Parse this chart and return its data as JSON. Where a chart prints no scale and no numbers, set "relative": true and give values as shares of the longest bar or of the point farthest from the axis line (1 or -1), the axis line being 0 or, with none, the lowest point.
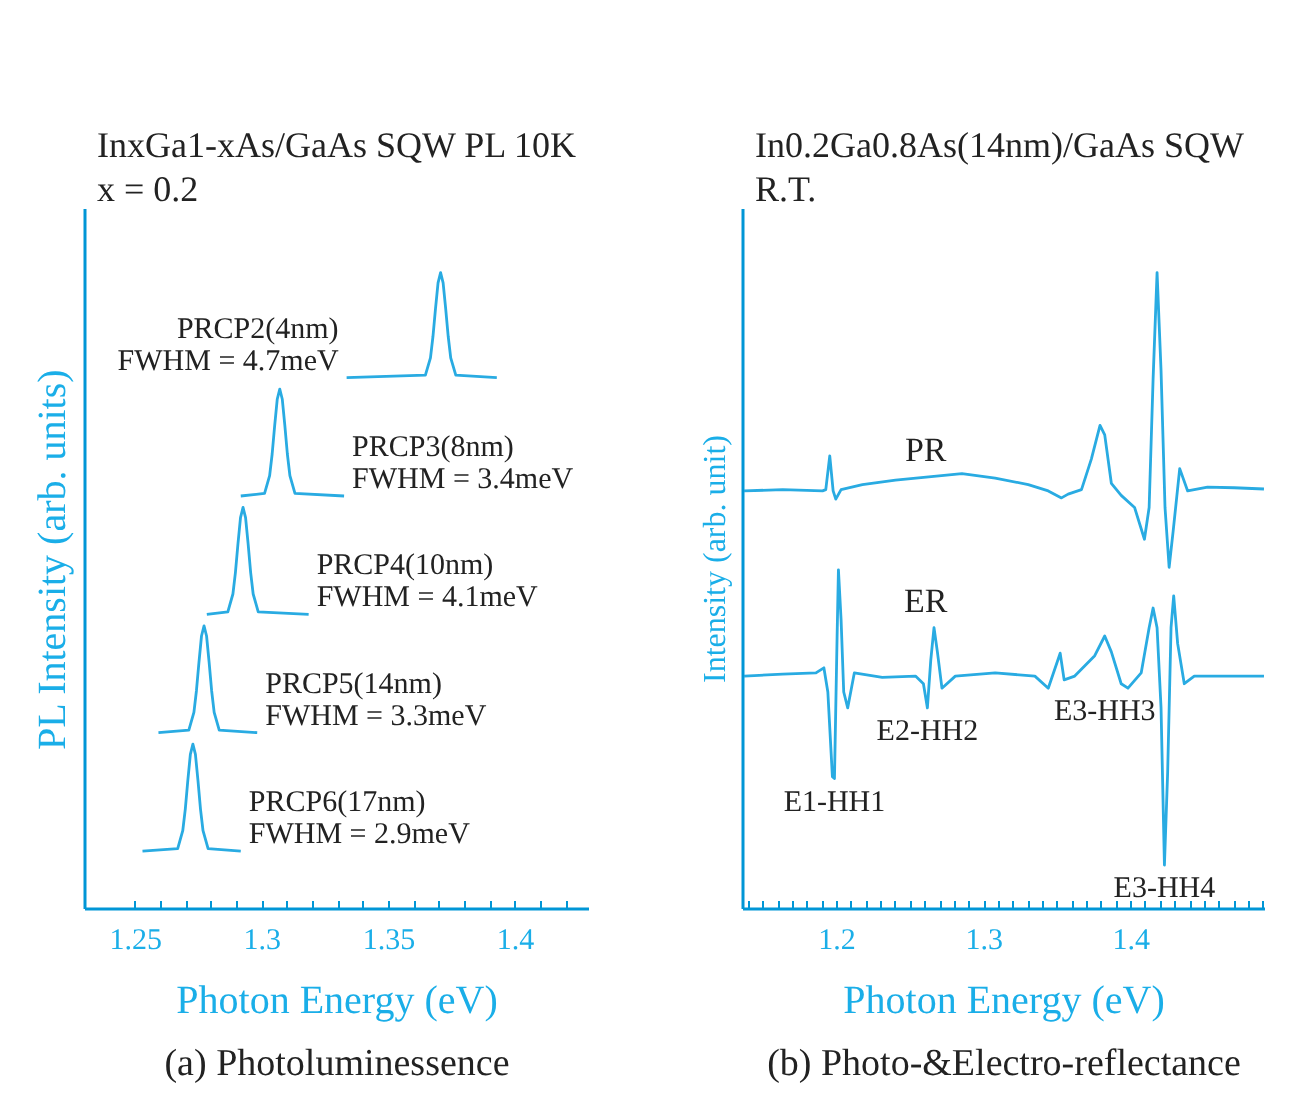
{
  "chart_data": [
    {
      "type": "line",
      "title": "InxGa1-xAs/GaAs SQW PL 10K",
      "subtitle": "x = 0.2",
      "xlabel": "Photon Energy (eV)",
      "ylabel": "PL Intensity (arb. units)",
      "relative": true,
      "grid": false,
      "marker": "none",
      "line_style": "solid",
      "xlim": [
        1.23,
        1.429
      ],
      "xticks": [
        1.25,
        {
          "value": 1.26,
          "label": null
        },
        {
          "value": 1.27,
          "label": null
        },
        {
          "value": 1.28,
          "label": null
        },
        {
          "value": 1.29,
          "label": null
        },
        1.3,
        {
          "value": 1.31,
          "label": null
        },
        {
          "value": 1.32,
          "label": null
        },
        {
          "value": 1.33,
          "label": null
        },
        {
          "value": 1.34,
          "label": null
        },
        1.35,
        {
          "value": 1.36,
          "label": null
        },
        {
          "value": 1.37,
          "label": null
        },
        {
          "value": 1.38,
          "label": null
        },
        {
          "value": 1.39,
          "label": null
        },
        1.4,
        {
          "value": 1.41,
          "label": null
        },
        {
          "value": 1.42,
          "label": null
        }
      ],
      "series": [
        {
          "name": "PRCP2(4nm)\nFWHM = 4.7meV",
          "color": "#29abe2",
          "x": [
            1.3333,
            1.3644,
            1.3664,
            1.3674,
            1.3684,
            1.3694,
            1.3704,
            1.3714,
            1.3724,
            1.3734,
            1.3744,
            1.3764,
            1.3926
          ],
          "values": [
            0.835,
            0.839,
            0.866,
            0.9,
            0.944,
            0.984,
            1.0,
            0.984,
            0.944,
            0.9,
            0.866,
            0.839,
            0.835
          ]
        },
        {
          "name": "PRCP3(8nm)\nFWHM = 3.4meV",
          "color": "#29abe2",
          "x": [
            1.2915,
            1.3009,
            1.3029,
            1.3039,
            1.3049,
            1.3059,
            1.3069,
            1.3079,
            1.3089,
            1.3099,
            1.3109,
            1.3129,
            1.3323
          ],
          "values": [
            0.649,
            0.653,
            0.681,
            0.715,
            0.76,
            0.801,
            0.817,
            0.801,
            0.76,
            0.715,
            0.681,
            0.653,
            0.649
          ]
        },
        {
          "name": "PRCP4(10nm)\nFWHM = 4.1meV",
          "color": "#29abe2",
          "x": [
            1.2781,
            1.2864,
            1.2884,
            1.2894,
            1.2904,
            1.2914,
            1.2924,
            1.2934,
            1.2944,
            1.2954,
            1.2964,
            1.2984,
            1.3183
          ],
          "values": [
            0.463,
            0.467,
            0.495,
            0.529,
            0.574,
            0.615,
            0.631,
            0.615,
            0.574,
            0.529,
            0.495,
            0.467,
            0.463
          ]
        },
        {
          "name": "PRCP5(14nm)\nFWHM = 3.3meV",
          "color": "#29abe2",
          "x": [
            1.259,
            1.271,
            1.273,
            1.274,
            1.275,
            1.276,
            1.277,
            1.278,
            1.279,
            1.28,
            1.281,
            1.283,
            1.298
          ],
          "values": [
            0.277,
            0.281,
            0.309,
            0.343,
            0.388,
            0.429,
            0.445,
            0.429,
            0.388,
            0.343,
            0.309,
            0.281,
            0.277
          ]
        },
        {
          "name": "PRCP6(17nm)\nFWHM = 2.9meV",
          "color": "#29abe2",
          "x": [
            1.2527,
            1.2666,
            1.2686,
            1.2696,
            1.2706,
            1.2716,
            1.2726,
            1.2736,
            1.2746,
            1.2756,
            1.2766,
            1.2786,
            1.2915
          ],
          "values": [
            0.091,
            0.095,
            0.123,
            0.157,
            0.202,
            0.243,
            0.259,
            0.243,
            0.202,
            0.157,
            0.123,
            0.095,
            0.091
          ]
        }
      ],
      "annotations": [
        "(a) Photoluminessence"
      ]
    },
    {
      "type": "line",
      "title": "In0.2Ga0.8As(14nm)/GaAs SQW",
      "subtitle": "R.T.",
      "xlabel": "Photon Energy (eV)",
      "ylabel": "Intensity (arb. unit)",
      "relative": true,
      "grid": false,
      "marker": "none",
      "line_style": "solid",
      "xlim": [
        1.136,
        1.491
      ],
      "xticks": [
        {
          "value": 1.14,
          "label": null
        },
        {
          "value": 1.15,
          "label": null
        },
        {
          "value": 1.16,
          "label": null
        },
        {
          "value": 1.17,
          "label": null
        },
        {
          "value": 1.18,
          "label": null
        },
        {
          "value": 1.19,
          "label": null
        },
        1.2,
        {
          "value": 1.21,
          "label": null
        },
        {
          "value": 1.22,
          "label": null
        },
        {
          "value": 1.23,
          "label": null
        },
        {
          "value": 1.24,
          "label": null
        },
        {
          "value": 1.25,
          "label": null
        },
        {
          "value": 1.26,
          "label": null
        },
        {
          "value": 1.27,
          "label": null
        },
        {
          "value": 1.28,
          "label": null
        },
        {
          "value": 1.29,
          "label": null
        },
        1.3,
        {
          "value": 1.31,
          "label": null
        },
        {
          "value": 1.32,
          "label": null
        },
        {
          "value": 1.33,
          "label": null
        },
        {
          "value": 1.34,
          "label": null
        },
        {
          "value": 1.35,
          "label": null
        },
        {
          "value": 1.36,
          "label": null
        },
        {
          "value": 1.37,
          "label": null
        },
        {
          "value": 1.38,
          "label": null
        },
        {
          "value": 1.39,
          "label": null
        },
        1.4,
        {
          "value": 1.41,
          "label": null
        },
        {
          "value": 1.42,
          "label": null
        },
        {
          "value": 1.43,
          "label": null
        },
        {
          "value": 1.44,
          "label": null
        },
        {
          "value": 1.45,
          "label": null
        },
        {
          "value": 1.46,
          "label": null
        },
        {
          "value": 1.47,
          "label": null
        },
        {
          "value": 1.48,
          "label": null
        },
        {
          "value": 1.49,
          "label": null
        }
      ],
      "series": [
        {
          "name": "PR",
          "color": "#29abe2",
          "x": [
            1.1368,
            1.163,
            1.1901,
            1.1923,
            1.195,
            1.1973,
            1.1991,
            1.2027,
            1.2172,
            1.2397,
            1.2623,
            1.2849,
            1.3075,
            1.33,
            1.3436,
            1.3526,
            1.3571,
            1.3662,
            1.3729,
            1.3788,
            1.382,
            1.3865,
            1.3932,
            1.4023,
            1.409,
            1.4122,
            1.4149,
            1.4176,
            1.4203,
            1.423,
            1.4258,
            1.4285,
            1.433,
            1.4384,
            1.4519,
            1.47,
            1.4903
          ],
          "values": [
            0.657,
            0.659,
            0.657,
            0.659,
            0.712,
            0.657,
            0.644,
            0.659,
            0.667,
            0.674,
            0.679,
            0.684,
            0.677,
            0.667,
            0.657,
            0.646,
            0.652,
            0.659,
            0.707,
            0.76,
            0.745,
            0.669,
            0.65,
            0.631,
            0.581,
            0.631,
            0.833,
            1.0,
            0.846,
            0.631,
            0.537,
            0.593,
            0.692,
            0.657,
            0.663,
            0.662,
            0.66
          ]
        },
        {
          "name": "ER",
          "color": "#29abe2",
          "x": [
            1.1368,
            1.163,
            1.1856,
            1.191,
            1.1937,
            1.1968,
            1.1982,
            1.2,
            1.2009,
            1.2027,
            1.2045,
            1.2072,
            1.2117,
            1.2307,
            1.2533,
            1.2587,
            1.2614,
            1.2637,
            1.2659,
            1.2682,
            1.2713,
            1.2804,
            1.3075,
            1.3345,
            1.3436,
            1.3517,
            1.3544,
            1.3616,
            1.3752,
            1.382,
            1.3865,
            1.3932,
            1.3978,
            1.4068,
            1.4122,
            1.4149,
            1.4176,
            1.4203,
            1.4226,
            1.4248,
            1.4271,
            1.4289,
            1.4316,
            1.4361,
            1.4429,
            1.4655,
            1.4903
          ],
          "values": [
            0.366,
            0.369,
            0.371,
            0.379,
            0.341,
            0.208,
            0.205,
            0.429,
            0.533,
            0.455,
            0.341,
            0.316,
            0.371,
            0.364,
            0.366,
            0.354,
            0.316,
            0.391,
            0.442,
            0.404,
            0.347,
            0.366,
            0.371,
            0.366,
            0.347,
            0.402,
            0.36,
            0.366,
            0.398,
            0.429,
            0.404,
            0.354,
            0.347,
            0.371,
            0.442,
            0.473,
            0.442,
            0.316,
            0.069,
            0.215,
            0.442,
            0.492,
            0.417,
            0.354,
            0.366,
            0.366,
            0.366
          ]
        }
      ],
      "annotations": [
        {
          "text": "E1-HH1",
          "x": 1.1982,
          "y": 0.205
        },
        {
          "text": "E2-HH2",
          "x": 1.2614,
          "y": 0.316
        },
        {
          "text": "E3-HH3",
          "x": 1.382,
          "y": 0.429
        },
        {
          "text": "E3-HH4",
          "x": 1.4226,
          "y": 0.069
        },
        "(b) Photo-&Electro-reflectance"
      ]
    }
  ]
}
